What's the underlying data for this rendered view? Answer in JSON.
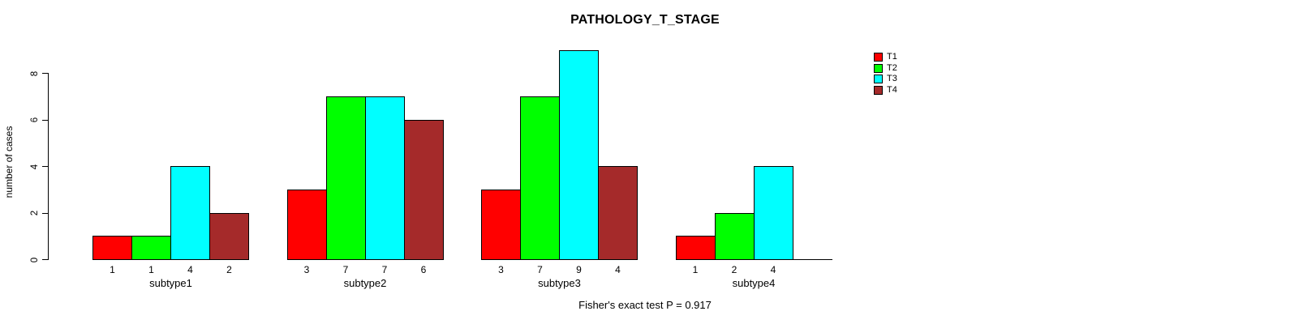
{
  "chart_data": {
    "type": "bar",
    "title": "PATHOLOGY_T_STAGE",
    "ylabel": "number of cases",
    "xlabel": "",
    "categories": [
      "subtype1",
      "subtype2",
      "subtype3",
      "subtype4"
    ],
    "series": [
      {
        "name": "T1",
        "color": "#ff0000",
        "values": [
          1,
          3,
          3,
          1
        ]
      },
      {
        "name": "T2",
        "color": "#00ff00",
        "values": [
          1,
          7,
          7,
          2
        ]
      },
      {
        "name": "T3",
        "color": "#00ffff",
        "values": [
          4,
          7,
          9,
          4
        ]
      },
      {
        "name": "T4",
        "color": "#a52a2a",
        "values": [
          2,
          6,
          4,
          0
        ]
      }
    ],
    "yticks": [
      0,
      2,
      4,
      6,
      8
    ],
    "ylim": [
      0,
      9.2
    ],
    "grid": false,
    "legend_position": "top-right",
    "show_bar_value_labels": true,
    "hide_zero_value_labels": true,
    "annotation": "Fisher's exact test P = 0.917",
    "background_color": "#ffffff",
    "text_color": "#000000"
  }
}
